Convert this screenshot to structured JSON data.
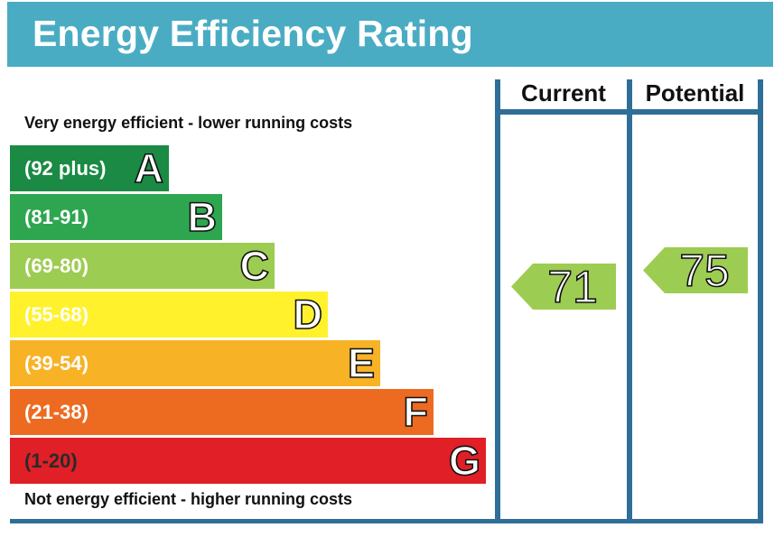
{
  "title": "Energy Efficiency Rating",
  "top_caption": "Very energy efficient - lower running costs",
  "bottom_caption": "Not energy efficient - higher running costs",
  "columns": {
    "current": "Current",
    "potential": "Potential"
  },
  "colors": {
    "header": "#4aacc3",
    "frame": "#2f6e97",
    "arrow": "#9dcc52"
  },
  "chart_data": {
    "type": "bar",
    "categories": [
      "A",
      "B",
      "C",
      "D",
      "E",
      "F",
      "G"
    ],
    "ranges": [
      "(92 plus)",
      "(81-91)",
      "(69-80)",
      "(55-68)",
      "(39-54)",
      "(21-38)",
      "(1-20)"
    ],
    "band_colors": [
      "#1a8a44",
      "#2ea64f",
      "#9dcc52",
      "#fff22c",
      "#f7b226",
      "#ec6b21",
      "#e01f26"
    ],
    "current": 71,
    "potential": 75
  }
}
